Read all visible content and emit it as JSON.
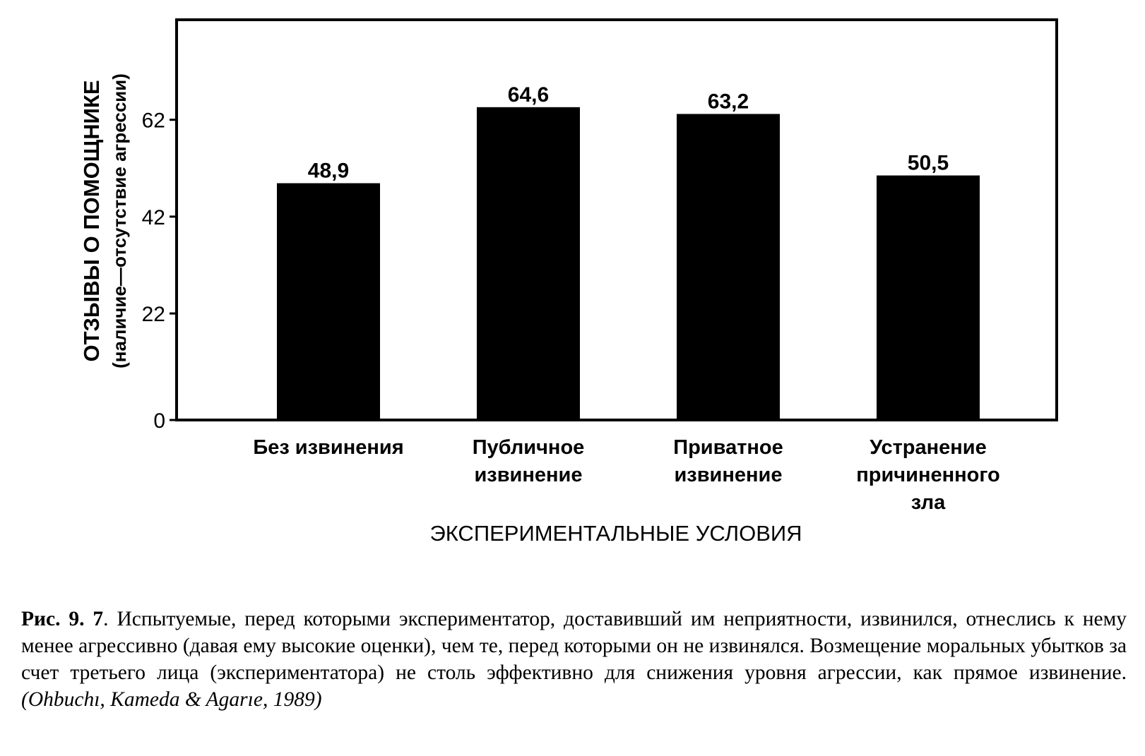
{
  "chart_data": {
    "type": "bar",
    "ylabel": "ОТЗЫВЫ О ПОМОЩНИКЕ",
    "ylabel_sub": "(наличие—отсутствие агрессии)",
    "xlabel": "ЭКСПЕРИМЕНТАЛЬНЫЕ УСЛОВИЯ",
    "ylim": [
      0,
      81
    ],
    "yticks": [
      0,
      22,
      42,
      62
    ],
    "ytick_labels": [
      "0",
      "22",
      "42",
      "62"
    ],
    "grid": false,
    "legend": "none",
    "bar_color": "#000000",
    "categories": [
      [
        "Без извинения"
      ],
      [
        "Публичное",
        "извинение"
      ],
      [
        "Приватное",
        "извинение"
      ],
      [
        "Устранение",
        "причиненного",
        "зла"
      ]
    ],
    "values": [
      48.9,
      64.6,
      63.2,
      50.5
    ],
    "value_labels": [
      "48,9",
      "64,6",
      "63,2",
      "50,5"
    ]
  },
  "caption": {
    "label": "Рис. 9. 7",
    "text": ". Испытуемые, перед которыми экспериментатор, доставивший им неприятности, извинился, отнеслись к нему менее агрессивно (давая ему высокие оценки), чем те, перед которыми он не извинялся. Возмещение моральных убытков за счет третьего лица (экспериментатора) не столь эффективно для снижения уровня агрессии, как прямое извинение. ",
    "citation": "(Ohbuchı, Kameda & Agarıe, 1989)"
  }
}
